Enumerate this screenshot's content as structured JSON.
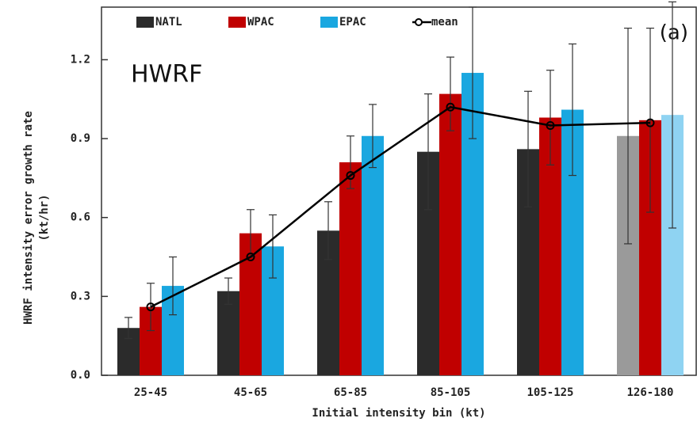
{
  "chart_data": {
    "type": "bar",
    "annotations": [
      "(a)",
      "HWRF"
    ],
    "y_label": [
      "HWRF intensity error growth rate",
      "(kt/hr)"
    ],
    "x_label": "Initial intensity bin (kt)",
    "categories": [
      "25-45",
      "45-65",
      "65-85",
      "85-105",
      "105-125",
      "126-180"
    ],
    "series": [
      {
        "name": "NATL",
        "color": "#2b2b2b",
        "colors": [
          "#2b2b2b",
          "#2b2b2b",
          "#2b2b2b",
          "#2b2b2b",
          "#2b2b2b",
          "#9a9a9a"
        ],
        "values": [
          0.18,
          0.32,
          0.55,
          0.85,
          0.86,
          0.91
        ],
        "errors": [
          0.04,
          0.05,
          0.11,
          0.22,
          0.22,
          0.41
        ]
      },
      {
        "name": "WPAC",
        "color": "#c00000",
        "colors": [
          "#c00000",
          "#c00000",
          "#c00000",
          "#c00000",
          "#c00000",
          "#c00000"
        ],
        "values": [
          0.26,
          0.54,
          0.81,
          1.07,
          0.98,
          0.97
        ],
        "errors": [
          0.09,
          0.09,
          0.1,
          0.14,
          0.18,
          0.35
        ]
      },
      {
        "name": "EPAC",
        "color": "#1aa7e0",
        "colors": [
          "#1aa7e0",
          "#1aa7e0",
          "#1aa7e0",
          "#1aa7e0",
          "#1aa7e0",
          "#8fd3f2"
        ],
        "values": [
          0.34,
          0.49,
          0.91,
          1.15,
          1.01,
          0.99
        ],
        "errors": [
          0.11,
          0.12,
          0.12,
          0.25,
          0.25,
          0.43
        ]
      },
      {
        "name": "mean",
        "color": "#000000",
        "style": "line",
        "values": [
          0.26,
          0.45,
          0.76,
          1.02,
          0.95,
          0.96
        ]
      }
    ],
    "ylim": [
      0,
      1.4
    ],
    "yticks": [
      {
        "value": 0,
        "label": "0.0"
      },
      0.3,
      0.6,
      0.9,
      1.2
    ],
    "grid": false
  }
}
